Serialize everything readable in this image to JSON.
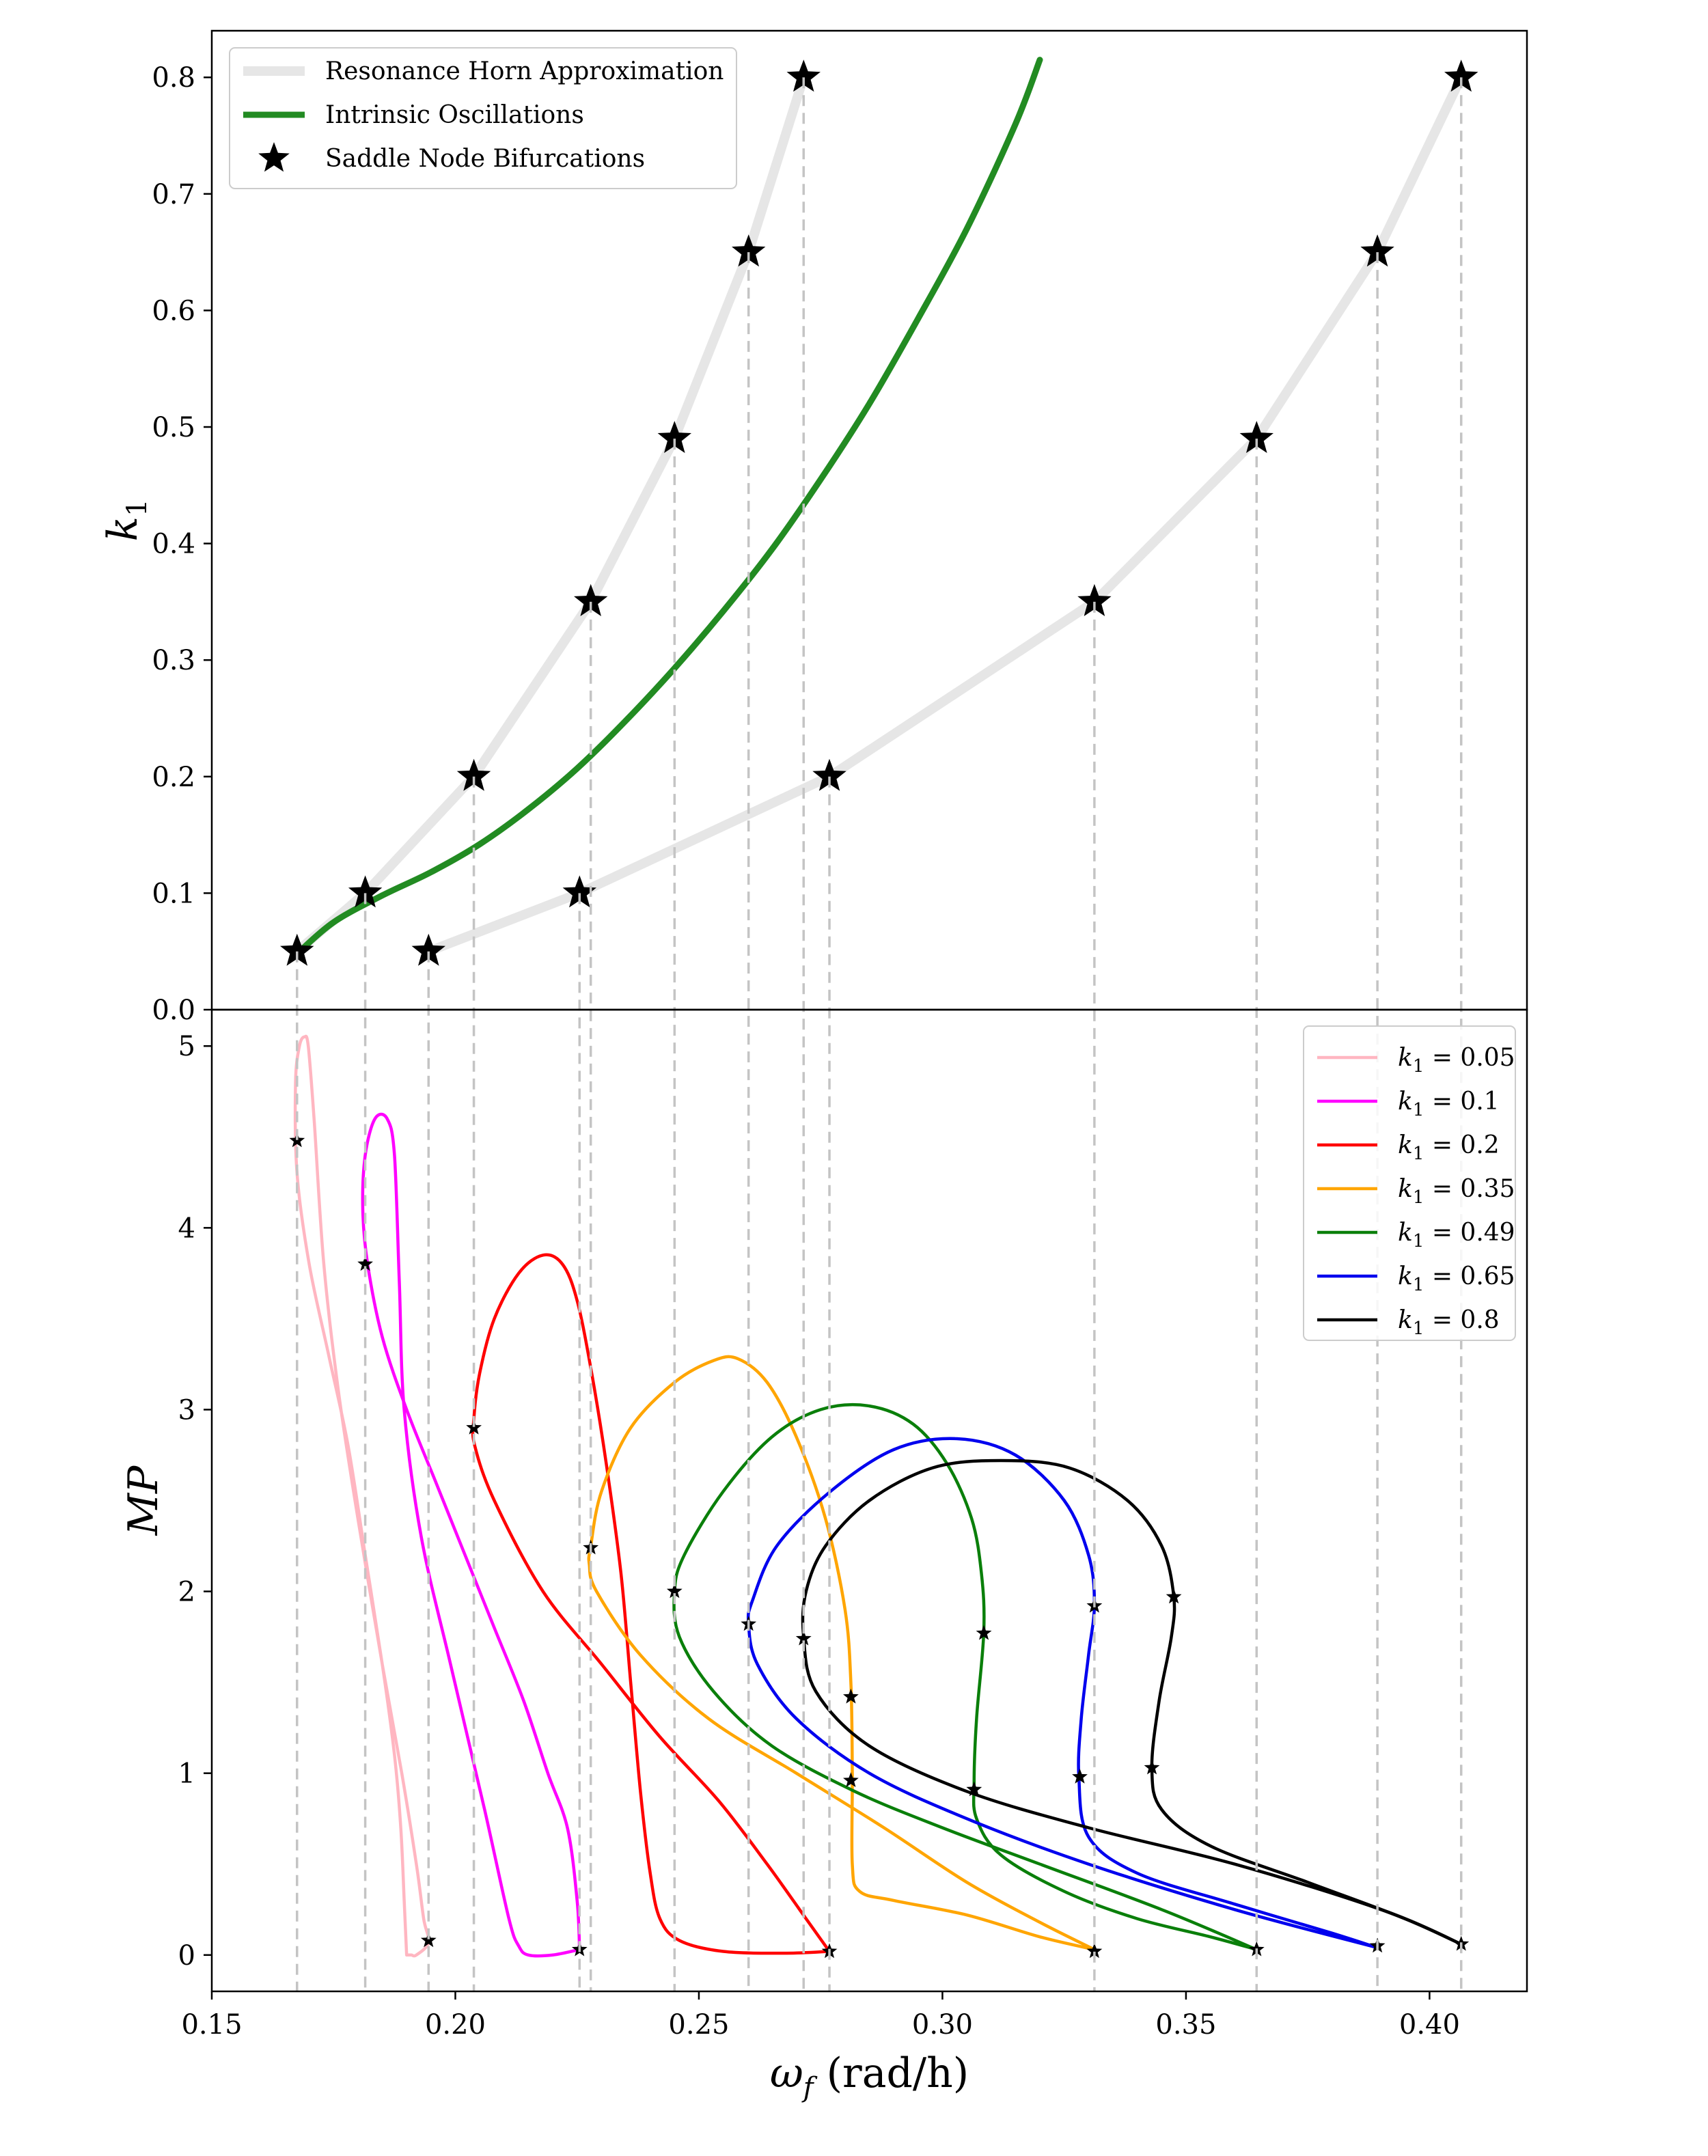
{
  "chart_data": [
    {
      "type": "line",
      "panel": "top",
      "xlabel_symbol": "ωf",
      "xlabel_unit": "(rad/h)",
      "ylabel": "k1",
      "xlim": [
        0.15,
        0.42
      ],
      "ylim": [
        0.0,
        0.84
      ],
      "x_ticks": [
        "0.15",
        "0.20",
        "0.25",
        "0.30",
        "0.35",
        "0.40"
      ],
      "x_tick_values": [
        0.15,
        0.2,
        0.25,
        0.3,
        0.35,
        0.4
      ],
      "y_ticks": [
        "0.0",
        "0.1",
        "0.2",
        "0.3",
        "0.4",
        "0.5",
        "0.6",
        "0.7",
        "0.8"
      ],
      "y_tick_values": [
        0.0,
        0.1,
        0.2,
        0.3,
        0.4,
        0.5,
        0.6,
        0.7,
        0.8
      ],
      "legend_position": "top-left",
      "legend": [
        "Resonance Horn Approximation",
        "Intrinsic Oscillations",
        "Saddle Node Bifurcations"
      ],
      "horn_left": {
        "name": "Resonance Horn Approximation",
        "color": "#e6e6e6",
        "x": [
          0.1675,
          0.1815,
          0.2038,
          0.2278,
          0.245,
          0.2602,
          0.2715
        ],
        "y": [
          0.05,
          0.1,
          0.2,
          0.35,
          0.49,
          0.65,
          0.8
        ]
      },
      "horn_right": {
        "name": "Resonance Horn Approximation",
        "color": "#e6e6e6",
        "x": [
          0.1945,
          0.2255,
          0.2768,
          0.3312,
          0.3645,
          0.3893,
          0.4065
        ],
        "y": [
          0.05,
          0.1,
          0.2,
          0.35,
          0.49,
          0.65,
          0.8
        ]
      },
      "intrinsic": {
        "name": "Intrinsic Oscillations",
        "color": "#228b22",
        "x": [
          0.1675,
          0.175,
          0.185,
          0.195,
          0.205,
          0.215,
          0.225,
          0.235,
          0.245,
          0.255,
          0.265,
          0.275,
          0.285,
          0.295,
          0.305,
          0.315,
          0.32
        ],
        "y": [
          0.048,
          0.075,
          0.098,
          0.118,
          0.142,
          0.172,
          0.207,
          0.248,
          0.293,
          0.342,
          0.395,
          0.455,
          0.52,
          0.593,
          0.67,
          0.76,
          0.815
        ]
      },
      "saddle_nodes": {
        "name": "Saddle Node Bifurcations",
        "color": "#000000",
        "x": [
          0.1675,
          0.1815,
          0.2038,
          0.2278,
          0.245,
          0.2602,
          0.2715,
          0.1945,
          0.2255,
          0.2768,
          0.3312,
          0.3645,
          0.3893,
          0.4065
        ],
        "y": [
          0.05,
          0.1,
          0.2,
          0.35,
          0.49,
          0.65,
          0.8,
          0.05,
          0.1,
          0.2,
          0.35,
          0.49,
          0.65,
          0.8
        ]
      }
    },
    {
      "type": "line",
      "panel": "bottom",
      "xlabel_symbol": "ωf",
      "xlabel_unit": "(rad/h)",
      "ylabel": "MP",
      "xlim": [
        0.15,
        0.42
      ],
      "ylim": [
        -0.2,
        5.2
      ],
      "y_ticks": [
        "0",
        "1",
        "2",
        "3",
        "4",
        "5"
      ],
      "y_tick_values": [
        0,
        1,
        2,
        3,
        4,
        5
      ],
      "legend_position": "top-right",
      "series": [
        {
          "name": "k1 = 0.05",
          "k1": "0.05",
          "color": "#ffb6c1",
          "x": [
            0.19,
            0.1895,
            0.1888,
            0.1875,
            0.185,
            0.1815,
            0.178,
            0.174,
            0.17,
            0.1675,
            0.1672,
            0.168,
            0.169,
            0.1698,
            0.171,
            0.173,
            0.176,
            0.18,
            0.185,
            0.189,
            0.192,
            0.1935,
            0.1945,
            0.192,
            0.191,
            0.1905,
            0.19
          ],
          "y": [
            0.0,
            0.3,
            0.7,
            1.1,
            1.6,
            2.2,
            2.8,
            3.3,
            3.8,
            4.3,
            4.8,
            5.0,
            5.05,
            5.0,
            4.6,
            3.8,
            3.1,
            2.4,
            1.6,
            1.0,
            0.5,
            0.2,
            0.07,
            0.0,
            0.0,
            0.0,
            0.0
          ]
        },
        {
          "name": "k1 = 0.1",
          "k1": "0.1",
          "color": "#ff00ff",
          "x": [
            0.2255,
            0.225,
            0.223,
            0.219,
            0.214,
            0.208,
            0.202,
            0.196,
            0.19,
            0.185,
            0.182,
            0.181,
            0.1815,
            0.1835,
            0.186,
            0.1875,
            0.1885,
            0.1895,
            0.193,
            0.199,
            0.206,
            0.211,
            0.213,
            0.215,
            0.22,
            0.2255
          ],
          "y": [
            0.03,
            0.3,
            0.7,
            1.0,
            1.4,
            1.8,
            2.2,
            2.6,
            3.0,
            3.4,
            3.8,
            4.1,
            4.4,
            4.6,
            4.6,
            4.4,
            3.7,
            3.0,
            2.3,
            1.6,
            0.8,
            0.2,
            0.05,
            0.0,
            0.0,
            0.03
          ]
        },
        {
          "name": "k1 = 0.2",
          "k1": "0.2",
          "color": "#ff0000",
          "x": [
            0.2768,
            0.272,
            0.264,
            0.254,
            0.242,
            0.23,
            0.218,
            0.208,
            0.204,
            0.2038,
            0.205,
            0.208,
            0.213,
            0.218,
            0.222,
            0.225,
            0.228,
            0.231,
            0.234,
            0.236,
            0.238,
            0.24,
            0.242,
            0.246,
            0.255,
            0.268,
            0.2768
          ],
          "y": [
            0.02,
            0.2,
            0.5,
            0.85,
            1.2,
            1.6,
            2.0,
            2.5,
            2.8,
            2.95,
            3.2,
            3.5,
            3.75,
            3.85,
            3.8,
            3.6,
            3.2,
            2.7,
            2.1,
            1.5,
            0.9,
            0.45,
            0.2,
            0.08,
            0.02,
            0.01,
            0.02
          ]
        },
        {
          "name": "k1 = 0.35",
          "k1": "0.35",
          "color": "#ffa500",
          "x": [
            0.3312,
            0.32,
            0.305,
            0.288,
            0.27,
            0.252,
            0.238,
            0.229,
            0.2275,
            0.2278,
            0.23,
            0.236,
            0.245,
            0.253,
            0.258,
            0.264,
            0.27,
            0.276,
            0.28,
            0.2812,
            0.2815,
            0.2815,
            0.283,
            0.29,
            0.305,
            0.32,
            0.3312
          ],
          "y": [
            0.03,
            0.18,
            0.4,
            0.7,
            1.0,
            1.3,
            1.65,
            2.0,
            2.15,
            2.25,
            2.55,
            2.9,
            3.15,
            3.27,
            3.28,
            3.15,
            2.85,
            2.4,
            1.9,
            1.5,
            1.0,
            0.5,
            0.35,
            0.3,
            0.22,
            0.1,
            0.03
          ]
        },
        {
          "name": "k1 = 0.49",
          "k1": "0.49",
          "color": "#0a7f0a",
          "x": [
            0.3645,
            0.355,
            0.34,
            0.325,
            0.312,
            0.307,
            0.3065,
            0.307,
            0.3085,
            0.308,
            0.306,
            0.301,
            0.294,
            0.285,
            0.275,
            0.265,
            0.255,
            0.247,
            0.245,
            0.246,
            0.253,
            0.265,
            0.282,
            0.3,
            0.32,
            0.345,
            0.3645
          ],
          "y": [
            0.03,
            0.1,
            0.2,
            0.35,
            0.55,
            0.75,
            0.95,
            1.3,
            1.78,
            2.1,
            2.4,
            2.7,
            2.92,
            3.02,
            3.0,
            2.85,
            2.55,
            2.2,
            2.0,
            1.75,
            1.45,
            1.15,
            0.9,
            0.7,
            0.5,
            0.25,
            0.03
          ]
        },
        {
          "name": "k1 = 0.65",
          "k1": "0.65",
          "color": "#0000ee",
          "x": [
            0.3893,
            0.38,
            0.36,
            0.34,
            0.33,
            0.328,
            0.3285,
            0.33,
            0.3312,
            0.33,
            0.325,
            0.315,
            0.303,
            0.29,
            0.277,
            0.266,
            0.261,
            0.2602,
            0.262,
            0.27,
            0.285,
            0.305,
            0.33,
            0.36,
            0.3893
          ],
          "y": [
            0.04,
            0.12,
            0.28,
            0.45,
            0.65,
            0.98,
            1.3,
            1.65,
            1.93,
            2.2,
            2.5,
            2.75,
            2.84,
            2.78,
            2.55,
            2.25,
            1.95,
            1.82,
            1.6,
            1.3,
            1.0,
            0.75,
            0.5,
            0.25,
            0.04
          ]
        },
        {
          "name": "k1 = 0.8",
          "k1": "0.8",
          "color": "#000000",
          "x": [
            0.4065,
            0.395,
            0.375,
            0.355,
            0.345,
            0.343,
            0.3445,
            0.347,
            0.3475,
            0.345,
            0.338,
            0.326,
            0.312,
            0.298,
            0.285,
            0.276,
            0.272,
            0.2715,
            0.274,
            0.285,
            0.305,
            0.33,
            0.36,
            0.39,
            0.4065
          ],
          "y": [
            0.06,
            0.2,
            0.4,
            0.6,
            0.8,
            1.03,
            1.4,
            1.75,
            1.97,
            2.25,
            2.5,
            2.68,
            2.72,
            2.68,
            2.5,
            2.25,
            2.0,
            1.75,
            1.45,
            1.15,
            0.9,
            0.7,
            0.5,
            0.25,
            0.06
          ]
        }
      ],
      "saddle_nodes": {
        "color": "#000000",
        "x": [
          0.1675,
          0.1945,
          0.1815,
          0.2255,
          0.2038,
          0.2768,
          0.2278,
          0.2812,
          0.2812,
          0.3312,
          0.245,
          0.3085,
          0.3065,
          0.3645,
          0.2602,
          0.3312,
          0.3282,
          0.3893,
          0.2715,
          0.3475,
          0.343,
          0.4065
        ],
        "y": [
          4.48,
          0.08,
          3.8,
          0.03,
          2.9,
          0.02,
          2.24,
          1.42,
          0.96,
          0.02,
          2.0,
          1.77,
          0.91,
          0.03,
          1.82,
          1.92,
          0.98,
          0.05,
          1.74,
          1.97,
          1.03,
          0.06
        ]
      }
    }
  ]
}
